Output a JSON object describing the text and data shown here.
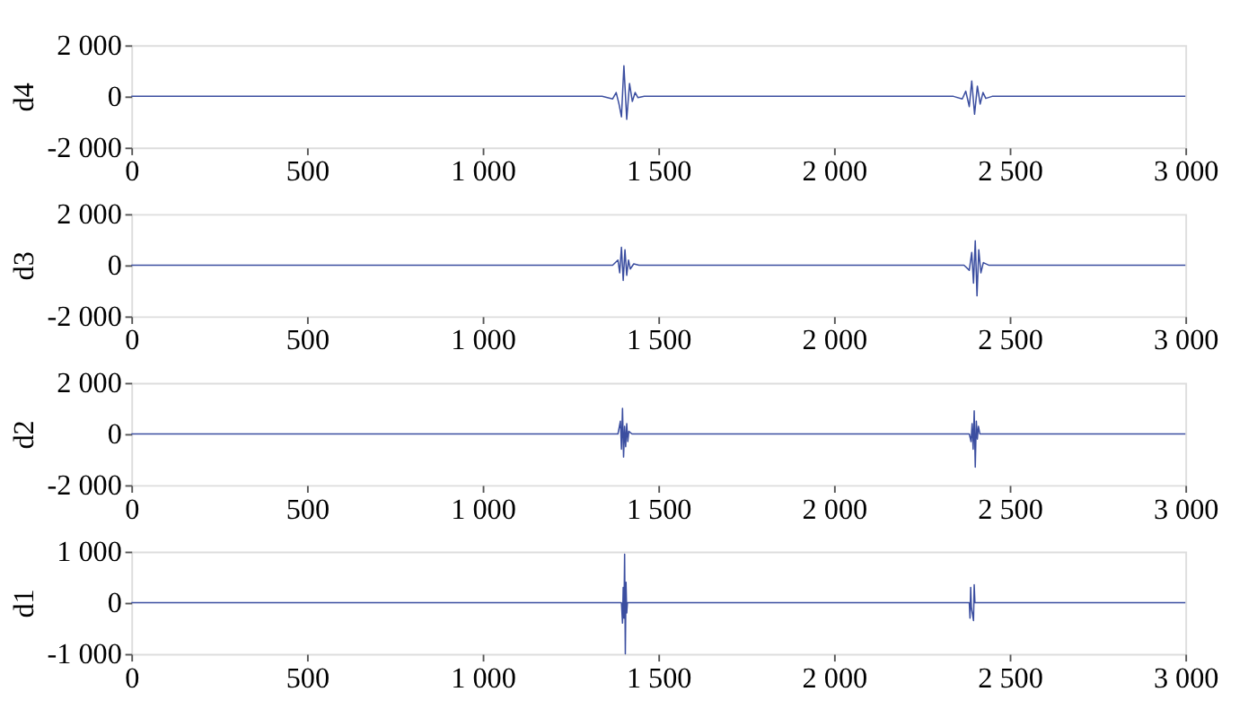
{
  "chart_data": [
    {
      "type": "line",
      "ylabel": "d4",
      "xlim": [
        0,
        3000
      ],
      "ylim": [
        -2000,
        2000
      ],
      "xticks": [
        0,
        500,
        {
          "value": 1000,
          "label": "1 000"
        },
        {
          "value": 1500,
          "label": "1 500"
        },
        {
          "value": 2000,
          "label": "2 000"
        },
        {
          "value": 2500,
          "label": "2 500"
        },
        {
          "value": 3000,
          "label": "3 000"
        }
      ],
      "yticks": [
        {
          "value": -2000,
          "label": "-2 000"
        },
        0,
        {
          "value": 2000,
          "label": "2 000"
        }
      ],
      "grid": false,
      "line_style": "solid",
      "x": [
        0,
        1340,
        1370,
        1380,
        1388,
        1395,
        1402,
        1410,
        1418,
        1426,
        1434,
        1442,
        1460,
        2340,
        2365,
        2375,
        2385,
        2392,
        2400,
        2408,
        2416,
        2424,
        2432,
        2450,
        3000
      ],
      "series": [
        {
          "color": "#3b4ea0",
          "values": [
            0,
            0,
            -100,
            150,
            -300,
            -800,
            1200,
            -900,
            500,
            -200,
            150,
            -50,
            0,
            0,
            -100,
            200,
            -400,
            600,
            -700,
            400,
            -300,
            150,
            -80,
            0,
            0
          ]
        }
      ]
    },
    {
      "type": "line",
      "ylabel": "d3",
      "xlim": [
        0,
        3000
      ],
      "ylim": [
        -2000,
        2000
      ],
      "xticks": [
        0,
        500,
        {
          "value": 1000,
          "label": "1 000"
        },
        {
          "value": 1500,
          "label": "1 500"
        },
        {
          "value": 2000,
          "label": "2 000"
        },
        {
          "value": 2500,
          "label": "2 500"
        },
        {
          "value": 3000,
          "label": "3 000"
        }
      ],
      "yticks": [
        {
          "value": -2000,
          "label": "-2 000"
        },
        0,
        {
          "value": 2000,
          "label": "2 000"
        }
      ],
      "grid": false,
      "line_style": "solid",
      "x": [
        0,
        1370,
        1385,
        1390,
        1395,
        1400,
        1405,
        1410,
        1415,
        1420,
        1430,
        1445,
        2370,
        2385,
        2392,
        2397,
        2402,
        2407,
        2412,
        2418,
        2425,
        2440,
        3000
      ],
      "series": [
        {
          "color": "#3b4ea0",
          "values": [
            0,
            0,
            200,
            -300,
            700,
            -600,
            600,
            -400,
            200,
            -150,
            50,
            0,
            0,
            -200,
            500,
            -700,
            950,
            -1200,
            600,
            -300,
            100,
            0,
            0
          ]
        }
      ]
    },
    {
      "type": "line",
      "ylabel": "d2",
      "xlim": [
        0,
        3000
      ],
      "ylim": [
        -2000,
        2000
      ],
      "xticks": [
        0,
        500,
        {
          "value": 1000,
          "label": "1 000"
        },
        {
          "value": 1500,
          "label": "1 500"
        },
        {
          "value": 2000,
          "label": "2 000"
        },
        {
          "value": 2500,
          "label": "2 500"
        },
        {
          "value": 3000,
          "label": "3 000"
        }
      ],
      "yticks": [
        {
          "value": -2000,
          "label": "-2 000"
        },
        0,
        {
          "value": 2000,
          "label": "2 000"
        }
      ],
      "grid": false,
      "line_style": "solid",
      "x": [
        0,
        1385,
        1392,
        1395,
        1398,
        1401,
        1404,
        1407,
        1410,
        1413,
        1416,
        1425,
        2385,
        2390,
        2393,
        2396,
        2399,
        2402,
        2405,
        2408,
        2411,
        2415,
        3000
      ],
      "series": [
        {
          "color": "#3b4ea0",
          "values": [
            0,
            0,
            500,
            -600,
            1000,
            -900,
            300,
            -500,
            400,
            -300,
            100,
            0,
            0,
            -300,
            400,
            -600,
            900,
            -1300,
            500,
            -200,
            300,
            0,
            0
          ]
        }
      ]
    },
    {
      "type": "line",
      "ylabel": "d1",
      "xlim": [
        0,
        3000
      ],
      "ylim": [
        -1000,
        1000
      ],
      "xticks": [
        0,
        500,
        {
          "value": 1000,
          "label": "1 000"
        },
        {
          "value": 1500,
          "label": "1 500"
        },
        {
          "value": 2000,
          "label": "2 000"
        },
        {
          "value": 2500,
          "label": "2 500"
        },
        {
          "value": 3000,
          "label": "3 000"
        }
      ],
      "yticks": [
        {
          "value": -1000,
          "label": "-1 000"
        },
        0,
        {
          "value": 1000,
          "label": "1 000"
        }
      ],
      "grid": false,
      "line_style": "solid",
      "x": [
        0,
        1395,
        1398,
        1400,
        1402,
        1404,
        1406,
        1408,
        1410,
        1412,
        2385,
        2387,
        2389,
        2391,
        2397,
        2399,
        2401,
        3000
      ],
      "series": [
        {
          "color": "#3b4ea0",
          "values": [
            0,
            0,
            -400,
            300,
            -300,
            950,
            -1000,
            400,
            -200,
            0,
            0,
            -300,
            300,
            -100,
            -350,
            350,
            0,
            0
          ]
        }
      ]
    }
  ]
}
